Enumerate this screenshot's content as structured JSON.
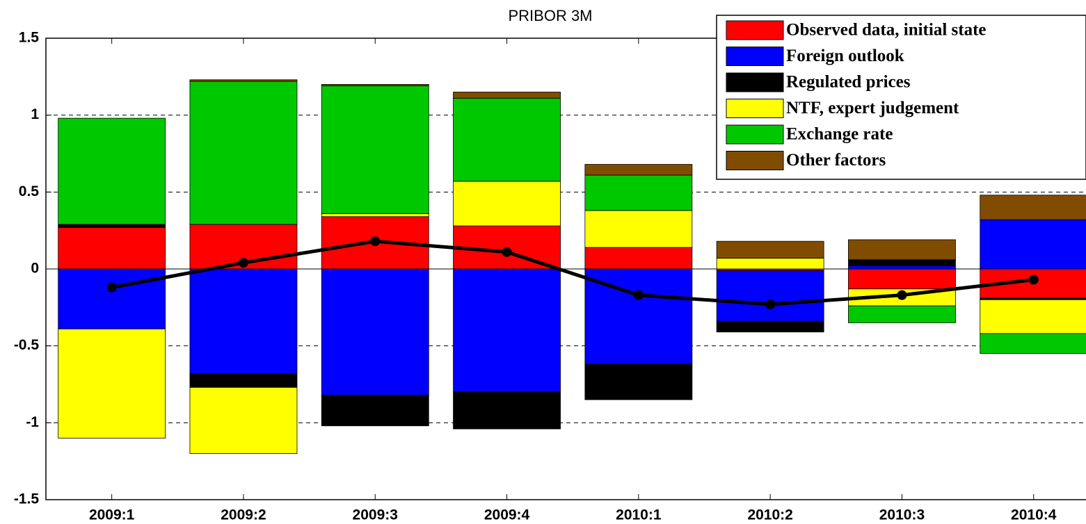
{
  "chart_data": {
    "type": "bar",
    "title": "PRIBOR 3M",
    "categories": [
      "2009:1",
      "2009:2",
      "2009:3",
      "2009:4",
      "2010:1",
      "2010:2",
      "2010:3",
      "2010:4"
    ],
    "series": [
      {
        "name": "Observed data, initial state",
        "color": "#ff0000",
        "values": [
          0.27,
          0.29,
          0.34,
          0.28,
          0.14,
          -0.01,
          -0.13,
          -0.19
        ]
      },
      {
        "name": "Foreign outlook",
        "color": "#0000ff",
        "values": [
          -0.39,
          -0.68,
          -0.82,
          -0.8,
          -0.62,
          -0.33,
          0.02,
          0.32
        ]
      },
      {
        "name": "Regulated prices",
        "color": "#000000",
        "values": [
          0.02,
          -0.09,
          -0.2,
          -0.24,
          -0.23,
          -0.07,
          0.04,
          -0.01
        ]
      },
      {
        "name": "NTF, expert judgement",
        "color": "#ffff00",
        "values": [
          -0.71,
          -0.43,
          0.02,
          0.29,
          0.24,
          0.07,
          -0.11,
          -0.22
        ]
      },
      {
        "name": "Exchange rate",
        "color": "#00c800",
        "values": [
          0.69,
          0.93,
          0.83,
          0.54,
          0.23,
          0,
          -0.11,
          -0.13
        ]
      },
      {
        "name": "Other factors",
        "color": "#804c00",
        "values": [
          0,
          0.01,
          0.01,
          0.04,
          0.07,
          0.11,
          0.13,
          0.16
        ]
      }
    ],
    "line": {
      "type": "line",
      "color": "#000000",
      "values": [
        -0.12,
        0.04,
        0.18,
        0.11,
        -0.17,
        -0.23,
        -0.17,
        -0.07
      ]
    },
    "ylim": [
      -1.5,
      1.5
    ],
    "yticks": [
      -1.5,
      -1,
      -0.5,
      0,
      0.5,
      1,
      1.5
    ],
    "grid": true,
    "legend": "upper right"
  }
}
